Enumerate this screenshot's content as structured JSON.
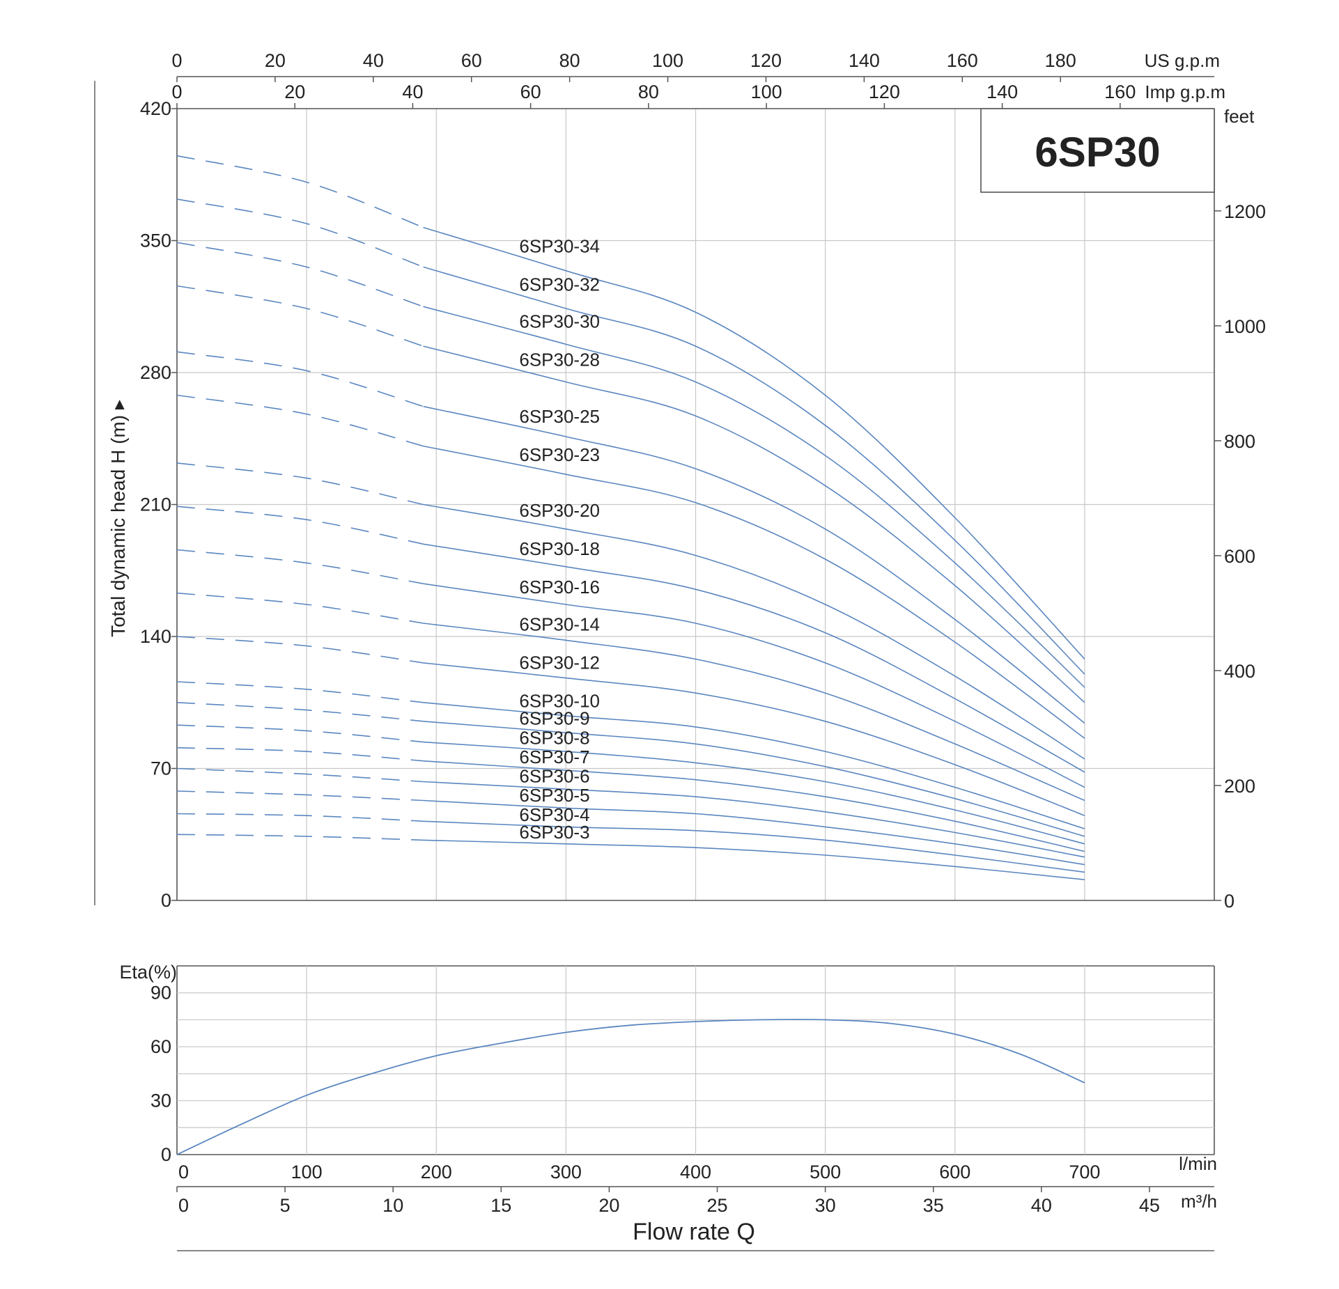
{
  "chart_data": [
    {
      "type": "line",
      "title": "6SP30",
      "ylabel": "Total dynamic head H (m) ▸",
      "y_right_unit": "feet",
      "top_axis_us_unit": "US g.p.m",
      "top_axis_imp_unit": "Imp g.p.m",
      "xlim": [
        0,
        800
      ],
      "ylim": [
        0,
        420
      ],
      "x_ticks": [
        100,
        200,
        300,
        400,
        500,
        600,
        700
      ],
      "y_ticks": [
        0,
        70,
        140,
        210,
        280,
        350,
        420
      ],
      "y_right_ticks": [
        0,
        200,
        400,
        600,
        800,
        1000,
        1200
      ],
      "us_gpm_ticks": [
        0,
        20,
        40,
        60,
        80,
        100,
        120,
        140,
        160,
        180
      ],
      "imp_gpm_ticks": [
        0,
        20,
        40,
        60,
        80,
        100,
        120,
        140,
        160
      ],
      "dashed_until_x": 190,
      "grid": true,
      "series": [
        {
          "name": "6SP30-34",
          "x": [
            0,
            100,
            190,
            300,
            400,
            500,
            600,
            700
          ],
          "values": [
            395,
            381,
            357,
            334,
            312,
            268,
            203,
            128
          ]
        },
        {
          "name": "6SP30-32",
          "x": [
            0,
            100,
            190,
            300,
            400,
            500,
            600,
            700
          ],
          "values": [
            372,
            359,
            336,
            314,
            294,
            252,
            191,
            120
          ]
        },
        {
          "name": "6SP30-30",
          "x": [
            0,
            100,
            190,
            300,
            400,
            500,
            600,
            700
          ],
          "values": [
            349,
            336,
            315,
            295,
            275,
            236,
            179,
            113
          ]
        },
        {
          "name": "6SP30-28",
          "x": [
            0,
            100,
            190,
            300,
            400,
            500,
            600,
            700
          ],
          "values": [
            326,
            314,
            294,
            275,
            257,
            220,
            167,
            105
          ]
        },
        {
          "name": "6SP30-25",
          "x": [
            0,
            100,
            190,
            300,
            400,
            500,
            600,
            700
          ],
          "values": [
            291,
            281,
            262,
            246,
            229,
            197,
            149,
            94
          ]
        },
        {
          "name": "6SP30-23",
          "x": [
            0,
            100,
            190,
            300,
            400,
            500,
            600,
            700
          ],
          "values": [
            268,
            258,
            241,
            226,
            211,
            181,
            137,
            86
          ]
        },
        {
          "name": "6SP30-20",
          "x": [
            0,
            100,
            190,
            300,
            400,
            500,
            600,
            700
          ],
          "values": [
            232,
            224,
            210,
            197,
            183,
            157,
            119,
            75
          ]
        },
        {
          "name": "6SP30-18",
          "x": [
            0,
            100,
            190,
            300,
            400,
            500,
            600,
            700
          ],
          "values": [
            209,
            202,
            189,
            177,
            165,
            142,
            107,
            68
          ]
        },
        {
          "name": "6SP30-16",
          "x": [
            0,
            100,
            190,
            300,
            400,
            500,
            600,
            700
          ],
          "values": [
            186,
            179,
            168,
            157,
            147,
            126,
            95,
            60
          ]
        },
        {
          "name": "6SP30-14",
          "x": [
            0,
            100,
            190,
            300,
            400,
            500,
            600,
            700
          ],
          "values": [
            163,
            157,
            147,
            138,
            128,
            110,
            83,
            53
          ]
        },
        {
          "name": "6SP30-12",
          "x": [
            0,
            100,
            190,
            300,
            400,
            500,
            600,
            700
          ],
          "values": [
            140,
            135,
            126,
            118,
            110,
            95,
            72,
            45
          ]
        },
        {
          "name": "6SP30-10",
          "x": [
            0,
            100,
            190,
            300,
            400,
            500,
            600,
            700
          ],
          "values": [
            116,
            112,
            105,
            98,
            92,
            79,
            60,
            38
          ]
        },
        {
          "name": "6SP30-9",
          "x": [
            0,
            100,
            190,
            300,
            400,
            500,
            600,
            700
          ],
          "values": [
            105,
            101,
            95,
            89,
            83,
            71,
            54,
            34
          ]
        },
        {
          "name": "6SP30-8",
          "x": [
            0,
            100,
            190,
            300,
            400,
            500,
            600,
            700
          ],
          "values": [
            93,
            90,
            84,
            79,
            73,
            63,
            48,
            30
          ]
        },
        {
          "name": "6SP30-7",
          "x": [
            0,
            100,
            190,
            300,
            400,
            500,
            600,
            700
          ],
          "values": [
            81,
            79,
            74,
            69,
            64,
            55,
            42,
            26
          ]
        },
        {
          "name": "6SP30-6",
          "x": [
            0,
            100,
            190,
            300,
            400,
            500,
            600,
            700
          ],
          "values": [
            70,
            67,
            63,
            59,
            55,
            47,
            36,
            23
          ]
        },
        {
          "name": "6SP30-5",
          "x": [
            0,
            100,
            190,
            300,
            400,
            500,
            600,
            700
          ],
          "values": [
            58,
            56,
            53,
            49,
            46,
            39,
            30,
            19
          ]
        },
        {
          "name": "6SP30-4",
          "x": [
            0,
            100,
            190,
            300,
            400,
            500,
            600,
            700
          ],
          "values": [
            46,
            45,
            42,
            39,
            37,
            32,
            24,
            15
          ]
        },
        {
          "name": "6SP30-3",
          "x": [
            0,
            100,
            190,
            300,
            400,
            500,
            600,
            700
          ],
          "values": [
            35,
            34,
            32,
            30,
            28,
            24,
            18,
            11
          ]
        }
      ]
    },
    {
      "type": "line",
      "ylabel": "Eta(%)",
      "xlabel": "Flow rate Q",
      "x_unit": "l/min",
      "x2_unit": "m³/h",
      "xlim": [
        0,
        800
      ],
      "ylim": [
        0,
        105
      ],
      "x_ticks": [
        0,
        100,
        200,
        300,
        400,
        500,
        600,
        700
      ],
      "y_ticks": [
        0,
        30,
        60,
        90
      ],
      "m3h_ticks": [
        0,
        5,
        10,
        15,
        20,
        25,
        30,
        35,
        40,
        45
      ],
      "grid": true,
      "series": [
        {
          "x": [
            0,
            50,
            100,
            150,
            200,
            250,
            300,
            350,
            400,
            450,
            500,
            550,
            600,
            650,
            700
          ],
          "values": [
            0,
            17,
            33,
            45,
            55,
            62,
            68,
            72,
            74,
            75,
            75,
            73,
            67,
            56,
            40
          ]
        }
      ]
    }
  ]
}
